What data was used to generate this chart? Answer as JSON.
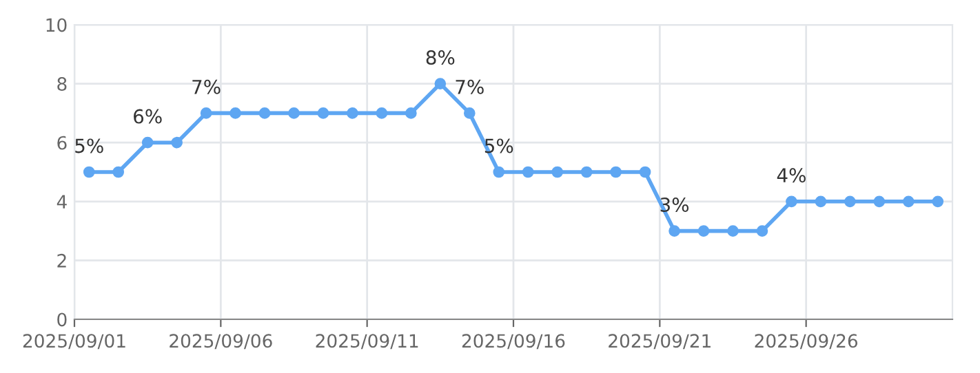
{
  "chart_data": {
    "type": "line",
    "x": [
      "2025-09-01T12:00",
      "2025-09-02T12:00",
      "2025-09-03T12:00",
      "2025-09-04T12:00",
      "2025-09-05T12:00",
      "2025-09-06T12:00",
      "2025-09-07T12:00",
      "2025-09-08T12:00",
      "2025-09-09T12:00",
      "2025-09-10T12:00",
      "2025-09-11T12:00",
      "2025-09-12T12:00",
      "2025-09-13T12:00",
      "2025-09-14T12:00",
      "2025-09-15T12:00",
      "2025-09-16T12:00",
      "2025-09-17T12:00",
      "2025-09-18T12:00",
      "2025-09-19T12:00",
      "2025-09-20T12:00",
      "2025-09-21T12:00",
      "2025-09-22T12:00",
      "2025-09-23T12:00",
      "2025-09-24T12:00",
      "2025-09-25T12:00",
      "2025-09-26T12:00",
      "2025-09-27T12:00",
      "2025-09-28T12:00",
      "2025-09-29T12:00",
      "2025-09-30T12:00"
    ],
    "series": [
      {
        "color": "#5ea6f2",
        "values": [
          5,
          5,
          6,
          6,
          7,
          7,
          7,
          7,
          7,
          7,
          7,
          7,
          8,
          7,
          5,
          5,
          5,
          5,
          5,
          5,
          3,
          3,
          3,
          3,
          4,
          4,
          4,
          4,
          4,
          4
        ],
        "value_labels": [
          "5%",
          null,
          "6%",
          null,
          "7%",
          null,
          null,
          null,
          null,
          null,
          null,
          null,
          "8%",
          "7%",
          "5%",
          null,
          null,
          null,
          null,
          null,
          "3%",
          null,
          null,
          null,
          "4%",
          null,
          null,
          null,
          null,
          null
        ]
      }
    ],
    "xlim": [
      "2025-09-01",
      "2025-10-01"
    ],
    "xticks": [
      {
        "value": "2025-09-01",
        "label": "2025/09/01"
      },
      {
        "value": "2025-09-06",
        "label": "2025/09/06"
      },
      {
        "value": "2025-09-11",
        "label": "2025/09/11"
      },
      {
        "value": "2025-09-16",
        "label": "2025/09/16"
      },
      {
        "value": "2025-09-21",
        "label": "2025/09/21"
      },
      {
        "value": "2025-09-26",
        "label": "2025/09/26"
      }
    ],
    "ylim": [
      0,
      10
    ],
    "yticks": [
      0,
      2,
      4,
      6,
      8,
      10
    ],
    "grid": true,
    "marker": "circle",
    "line_style": "solid"
  }
}
